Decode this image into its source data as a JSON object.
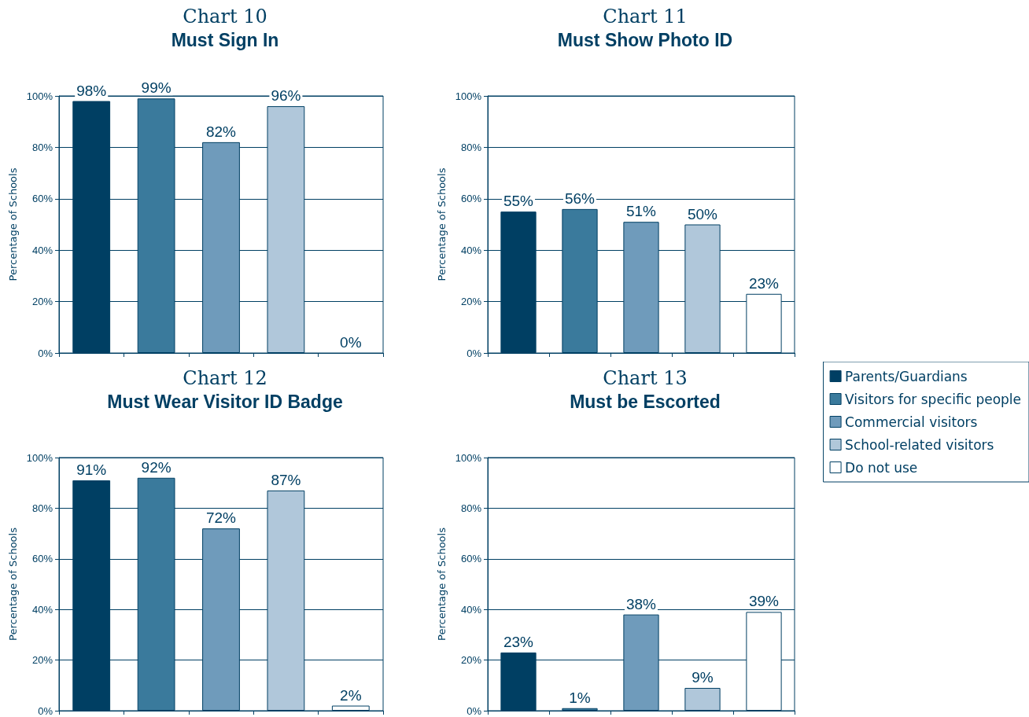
{
  "chart_data": [
    {
      "type": "bar",
      "title": "Chart 10",
      "subtitle": "Must Sign In",
      "ylabel": "Percentage of Schools",
      "categories": [
        null,
        null,
        null,
        null,
        null
      ],
      "ylim": [
        0,
        100
      ],
      "yticks": [
        {
          "value": 0,
          "label": "0%"
        },
        {
          "value": 20,
          "label": "20%"
        },
        {
          "value": 40,
          "label": "40%"
        },
        {
          "value": 60,
          "label": "60%"
        },
        {
          "value": 80,
          "label": "80%"
        },
        {
          "value": 100,
          "label": "100%"
        }
      ],
      "grid": "y",
      "legend": false,
      "series": [
        {
          "color": "#003f63",
          "values": [
            98,
            null,
            null,
            null,
            null
          ],
          "value_labels": [
            "98%",
            null,
            null,
            null,
            null
          ]
        },
        {
          "color": "#3a7a9c",
          "values": [
            null,
            99,
            null,
            null,
            null
          ],
          "value_labels": [
            null,
            "99%",
            null,
            null,
            null
          ]
        },
        {
          "color": "#6f9bbb",
          "values": [
            null,
            null,
            82,
            null,
            null
          ],
          "value_labels": [
            null,
            null,
            "82%",
            null,
            null
          ]
        },
        {
          "color": "#b0c7da",
          "values": [
            null,
            null,
            null,
            96,
            null
          ],
          "value_labels": [
            null,
            null,
            null,
            "96%",
            null
          ]
        },
        {
          "color": "#ffffff",
          "values": [
            null,
            null,
            null,
            null,
            0
          ],
          "value_labels": [
            null,
            null,
            null,
            null,
            "0%"
          ]
        }
      ]
    },
    {
      "type": "bar",
      "title": "Chart 11",
      "subtitle": "Must Show Photo ID",
      "ylabel": "Percentage of Schools",
      "categories": [
        null,
        null,
        null,
        null,
        null
      ],
      "ylim": [
        0,
        100
      ],
      "yticks": [
        {
          "value": 0,
          "label": "0%"
        },
        {
          "value": 20,
          "label": "20%"
        },
        {
          "value": 40,
          "label": "40%"
        },
        {
          "value": 60,
          "label": "60%"
        },
        {
          "value": 80,
          "label": "80%"
        },
        {
          "value": 100,
          "label": "100%"
        }
      ],
      "grid": "y",
      "legend": false,
      "series": [
        {
          "color": "#003f63",
          "values": [
            55,
            null,
            null,
            null,
            null
          ],
          "value_labels": [
            "55%",
            null,
            null,
            null,
            null
          ]
        },
        {
          "color": "#3a7a9c",
          "values": [
            null,
            56,
            null,
            null,
            null
          ],
          "value_labels": [
            null,
            "56%",
            null,
            null,
            null
          ]
        },
        {
          "color": "#6f9bbb",
          "values": [
            null,
            null,
            51,
            null,
            null
          ],
          "value_labels": [
            null,
            null,
            "51%",
            null,
            null
          ]
        },
        {
          "color": "#b0c7da",
          "values": [
            null,
            null,
            null,
            50,
            null
          ],
          "value_labels": [
            null,
            null,
            null,
            "50%",
            null
          ]
        },
        {
          "color": "#ffffff",
          "values": [
            null,
            null,
            null,
            null,
            23
          ],
          "value_labels": [
            null,
            null,
            null,
            null,
            "23%"
          ]
        }
      ]
    },
    {
      "type": "bar",
      "title": "Chart 12",
      "subtitle": "Must Wear Visitor ID Badge",
      "ylabel": "Percentage of Schools",
      "categories": [
        null,
        null,
        null,
        null,
        null
      ],
      "ylim": [
        0,
        100
      ],
      "yticks": [
        {
          "value": 0,
          "label": "0%"
        },
        {
          "value": 20,
          "label": "20%"
        },
        {
          "value": 40,
          "label": "40%"
        },
        {
          "value": 60,
          "label": "60%"
        },
        {
          "value": 80,
          "label": "80%"
        },
        {
          "value": 100,
          "label": "100%"
        }
      ],
      "grid": "y",
      "legend": false,
      "series": [
        {
          "color": "#003f63",
          "values": [
            91,
            null,
            null,
            null,
            null
          ],
          "value_labels": [
            "91%",
            null,
            null,
            null,
            null
          ]
        },
        {
          "color": "#3a7a9c",
          "values": [
            null,
            92,
            null,
            null,
            null
          ],
          "value_labels": [
            null,
            "92%",
            null,
            null,
            null
          ]
        },
        {
          "color": "#6f9bbb",
          "values": [
            null,
            null,
            72,
            null,
            null
          ],
          "value_labels": [
            null,
            null,
            "72%",
            null,
            null
          ]
        },
        {
          "color": "#b0c7da",
          "values": [
            null,
            null,
            null,
            87,
            null
          ],
          "value_labels": [
            null,
            null,
            null,
            "87%",
            null
          ]
        },
        {
          "color": "#ffffff",
          "values": [
            null,
            null,
            null,
            null,
            2
          ],
          "value_labels": [
            null,
            null,
            null,
            null,
            "2%"
          ]
        }
      ]
    },
    {
      "type": "bar",
      "title": "Chart 13",
      "subtitle": "Must be Escorted",
      "ylabel": "Percentage of Schools",
      "categories": [
        null,
        null,
        null,
        null,
        null
      ],
      "ylim": [
        0,
        100
      ],
      "yticks": [
        {
          "value": 0,
          "label": "0%"
        },
        {
          "value": 20,
          "label": "20%"
        },
        {
          "value": 40,
          "label": "40%"
        },
        {
          "value": 60,
          "label": "60%"
        },
        {
          "value": 80,
          "label": "80%"
        },
        {
          "value": 100,
          "label": "100%"
        }
      ],
      "grid": "y",
      "legend": "right",
      "series": [
        {
          "name": "Parents/Guardians",
          "color": "#003f63",
          "values": [
            23,
            null,
            null,
            null,
            null
          ],
          "value_labels": [
            "23%",
            null,
            null,
            null,
            null
          ]
        },
        {
          "name": "Visitors for specific people",
          "color": "#3a7a9c",
          "values": [
            null,
            1,
            null,
            null,
            null
          ],
          "value_labels": [
            null,
            "1%",
            null,
            null,
            null
          ]
        },
        {
          "name": "Commercial visitors",
          "color": "#6f9bbb",
          "values": [
            null,
            null,
            38,
            null,
            null
          ],
          "value_labels": [
            null,
            null,
            "38%",
            null,
            null
          ]
        },
        {
          "name": "School-related visitors",
          "color": "#b0c7da",
          "values": [
            null,
            null,
            null,
            9,
            null
          ],
          "value_labels": [
            null,
            null,
            null,
            "9%",
            null
          ]
        },
        {
          "name": "Do not use",
          "color": "#ffffff",
          "values": [
            null,
            null,
            null,
            null,
            39
          ],
          "value_labels": [
            null,
            null,
            null,
            null,
            "39%"
          ]
        }
      ]
    }
  ]
}
